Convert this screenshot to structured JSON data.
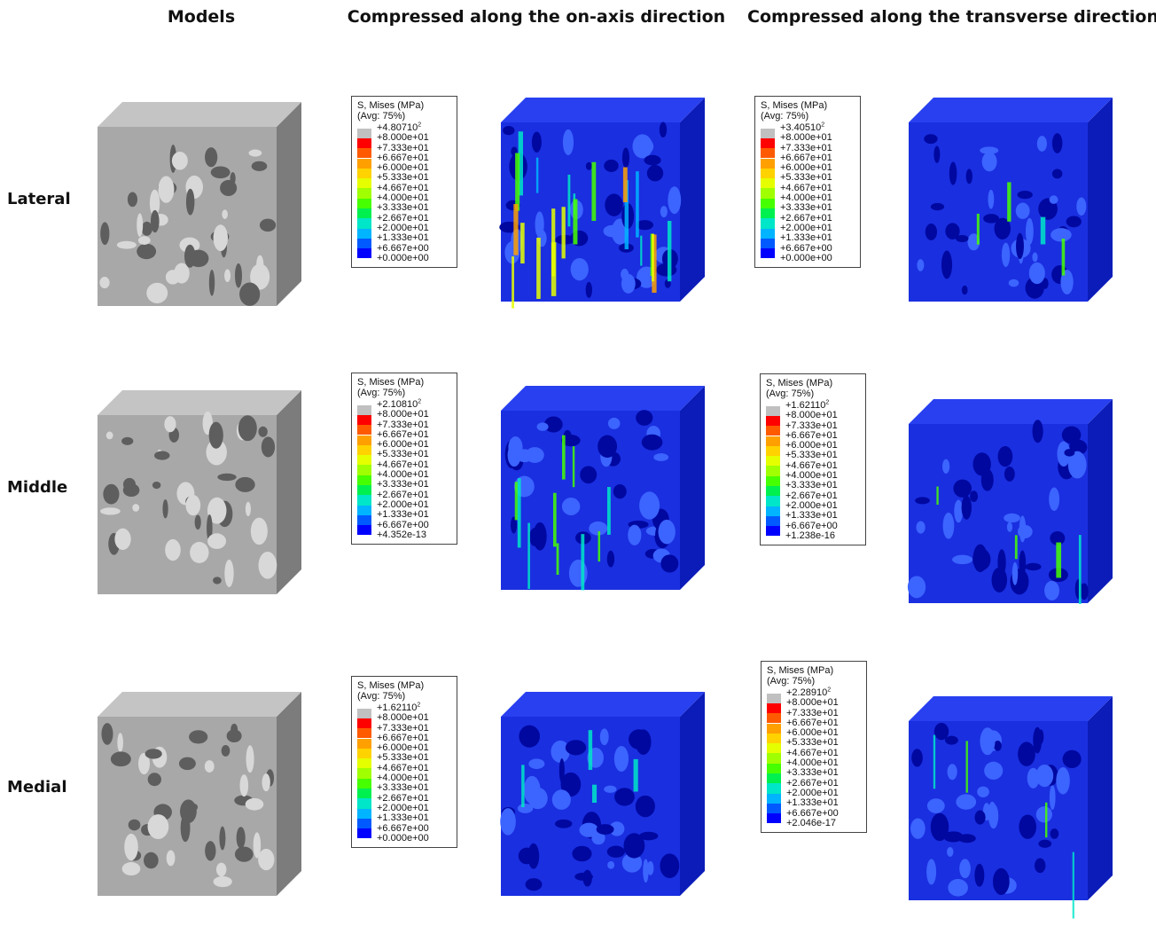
{
  "headers": {
    "models": "Models",
    "on_axis": "Compressed along the on-axis direction",
    "transverse": "Compressed along the transverse direction"
  },
  "rows": [
    "Lateral",
    "Middle",
    "Medial"
  ],
  "legend_colors": [
    "#c0c0c0",
    "#ff0000",
    "#ff5a00",
    "#ffa000",
    "#ffd200",
    "#e6ff00",
    "#a0ff00",
    "#46ff00",
    "#00f050",
    "#00e6c8",
    "#00b4ff",
    "#005aff",
    "#0000ff"
  ],
  "legends": [
    {
      "title": "S, Mises  (MPa)",
      "subtitle": "(Avg: 75%)",
      "max": "+4.80710",
      "max_exp": "2",
      "labels": [
        "+8.000e+01",
        "+7.333e+01",
        "+6.667e+01",
        "+6.000e+01",
        "+5.333e+01",
        "+4.667e+01",
        "+4.000e+01",
        "+3.333e+01",
        "+2.667e+01",
        "+2.000e+01",
        "+1.333e+01",
        "+6.667e+00",
        "+0.000e+00"
      ]
    },
    {
      "title": "S, Mises  (MPa)",
      "subtitle": "(Avg: 75%)",
      "max": "+3.40510",
      "max_exp": "2",
      "labels": [
        "+8.000e+01",
        "+7.333e+01",
        "+6.667e+01",
        "+6.000e+01",
        "+5.333e+01",
        "+4.667e+01",
        "+4.000e+01",
        "+3.333e+01",
        "+2.667e+01",
        "+2.000e+01",
        "+1.333e+01",
        "+6.667e+00",
        "+0.000e+00"
      ]
    },
    {
      "title": "S, Mises  (MPa)",
      "subtitle": "(Avg: 75%)",
      "max": "+2.10810",
      "max_exp": "2",
      "labels": [
        "+8.000e+01",
        "+7.333e+01",
        "+6.667e+01",
        "+6.000e+01",
        "+5.333e+01",
        "+4.667e+01",
        "+4.000e+01",
        "+3.333e+01",
        "+2.667e+01",
        "+2.000e+01",
        "+1.333e+01",
        "+6.667e+00",
        "+4.352e-13"
      ]
    },
    {
      "title": "S, Mises  (MPa)",
      "subtitle": "(Avg: 75%)",
      "max": "+1.62110",
      "max_exp": "2",
      "labels": [
        "+8.000e+01",
        "+7.333e+01",
        "+6.667e+01",
        "+6.000e+01",
        "+5.333e+01",
        "+4.667e+01",
        "+4.000e+01",
        "+3.333e+01",
        "+2.667e+01",
        "+2.000e+01",
        "+1.333e+01",
        "+6.667e+00",
        "+1.238e-16"
      ]
    },
    {
      "title": "S, Mises  (MPa)",
      "subtitle": "(Avg: 75%)",
      "max": "+1.62110",
      "max_exp": "2",
      "labels": [
        "+8.000e+01",
        "+7.333e+01",
        "+6.667e+01",
        "+6.000e+01",
        "+5.333e+01",
        "+4.667e+01",
        "+4.000e+01",
        "+3.333e+01",
        "+2.667e+01",
        "+2.000e+01",
        "+1.333e+01",
        "+6.667e+00",
        "+0.000e+00"
      ]
    },
    {
      "title": "S, Mises  (MPa)",
      "subtitle": "(Avg: 75%)",
      "max": "+2.28910",
      "max_exp": "2",
      "labels": [
        "+8.000e+01",
        "+7.333e+01",
        "+6.667e+01",
        "+6.000e+01",
        "+5.333e+01",
        "+4.667e+01",
        "+4.000e+01",
        "+3.333e+01",
        "+2.667e+01",
        "+2.000e+01",
        "+1.333e+01",
        "+6.667e+00",
        "+2.046e-17"
      ]
    }
  ]
}
